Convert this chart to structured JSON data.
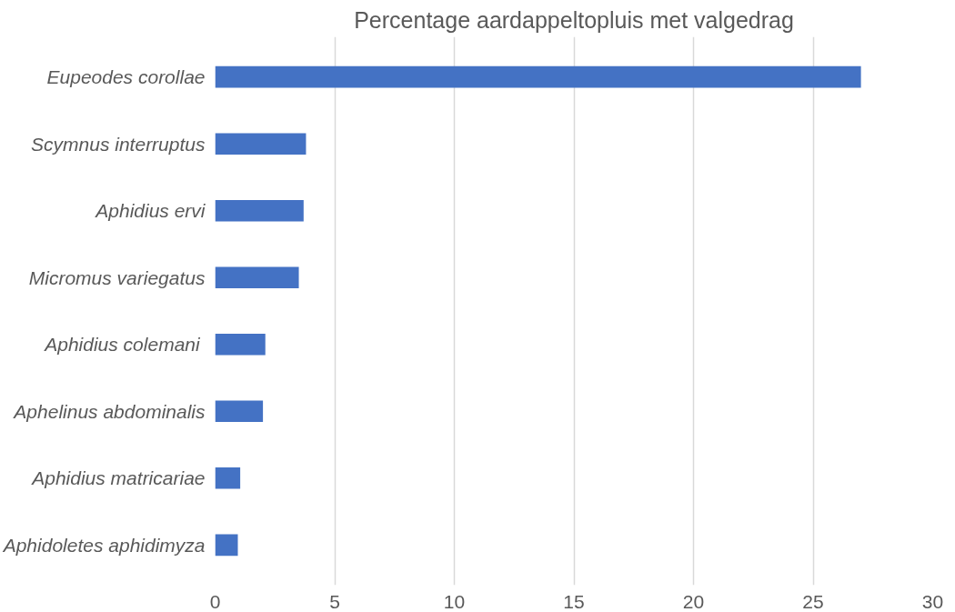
{
  "chart_data": {
    "type": "bar",
    "orientation": "horizontal",
    "title": "Percentage aardappeltopluis met valgedrag",
    "categories": [
      "Eupeodes corollae",
      "Scymnus interruptus",
      "Aphidius ervi",
      "Micromus variegatus",
      "Aphidius colemani ",
      "Aphelinus abdominalis",
      "Aphidius matricariae",
      "Aphidoletes aphidimyza"
    ],
    "values": [
      27,
      3.8,
      3.7,
      3.5,
      2.1,
      2.0,
      1.05,
      0.95
    ],
    "color": "#4472c4",
    "xlim": [
      0,
      30
    ],
    "xticks": [
      0,
      5,
      10,
      15,
      20,
      25,
      30
    ],
    "grid": "x"
  }
}
